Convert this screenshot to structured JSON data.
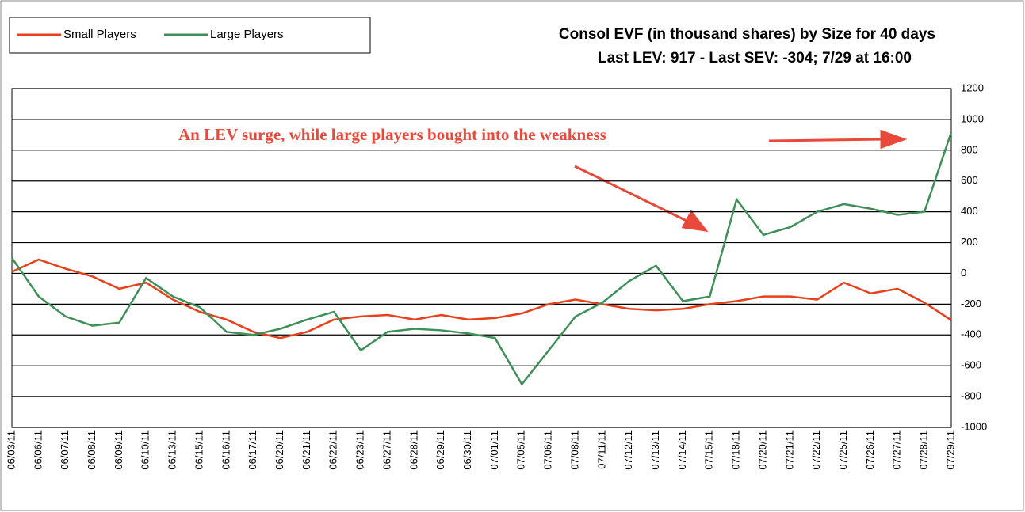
{
  "chart_data": {
    "type": "line",
    "title": "Consol EVF (in thousand shares) by Size for 40 days",
    "subtitle": "Last LEV: 917 - Last SEV: -304; 7/29 at 16:00",
    "annotation": "An LEV surge, while large players bought into the weakness",
    "categories": [
      "06/03/11",
      "06/06/11",
      "06/07/11",
      "06/08/11",
      "06/09/11",
      "06/10/11",
      "06/13/11",
      "06/15/11",
      "06/16/11",
      "06/17/11",
      "06/20/11",
      "06/21/11",
      "06/22/11",
      "06/23/11",
      "06/27/11",
      "06/28/11",
      "06/29/11",
      "06/30/11",
      "07/01/11",
      "07/05/11",
      "07/06/11",
      "07/08/11",
      "07/11/11",
      "07/12/11",
      "07/13/11",
      "07/14/11",
      "07/15/11",
      "07/18/11",
      "07/20/11",
      "07/21/11",
      "07/22/11",
      "07/25/11",
      "07/26/11",
      "07/27/11",
      "07/28/11",
      "07/29/11"
    ],
    "series": [
      {
        "name": "Small Players",
        "color": "#e8401c",
        "values": [
          10,
          90,
          30,
          -20,
          -100,
          -60,
          -170,
          -250,
          -300,
          -380,
          -420,
          -380,
          -300,
          -280,
          -270,
          -300,
          -270,
          -300,
          -290,
          -260,
          -200,
          -170,
          -200,
          -230,
          -240,
          -230,
          -200,
          -180,
          -150,
          -150,
          -170,
          -60,
          -130,
          -100,
          -190,
          -304
        ]
      },
      {
        "name": "Large Players",
        "color": "#3f8f58",
        "values": [
          100,
          -150,
          -280,
          -340,
          -320,
          -30,
          -150,
          -220,
          -380,
          -400,
          -360,
          -300,
          -250,
          -500,
          -380,
          -360,
          -370,
          -390,
          -420,
          -720,
          -500,
          -280,
          -190,
          -50,
          50,
          -180,
          -150,
          480,
          250,
          300,
          400,
          450,
          420,
          380,
          400,
          917
        ]
      }
    ],
    "ylim": [
      -1000,
      1200
    ],
    "yticks": [
      -1000,
      -800,
      -600,
      -400,
      -200,
      0,
      200,
      400,
      600,
      800,
      1000,
      1200
    ],
    "grid": true
  }
}
